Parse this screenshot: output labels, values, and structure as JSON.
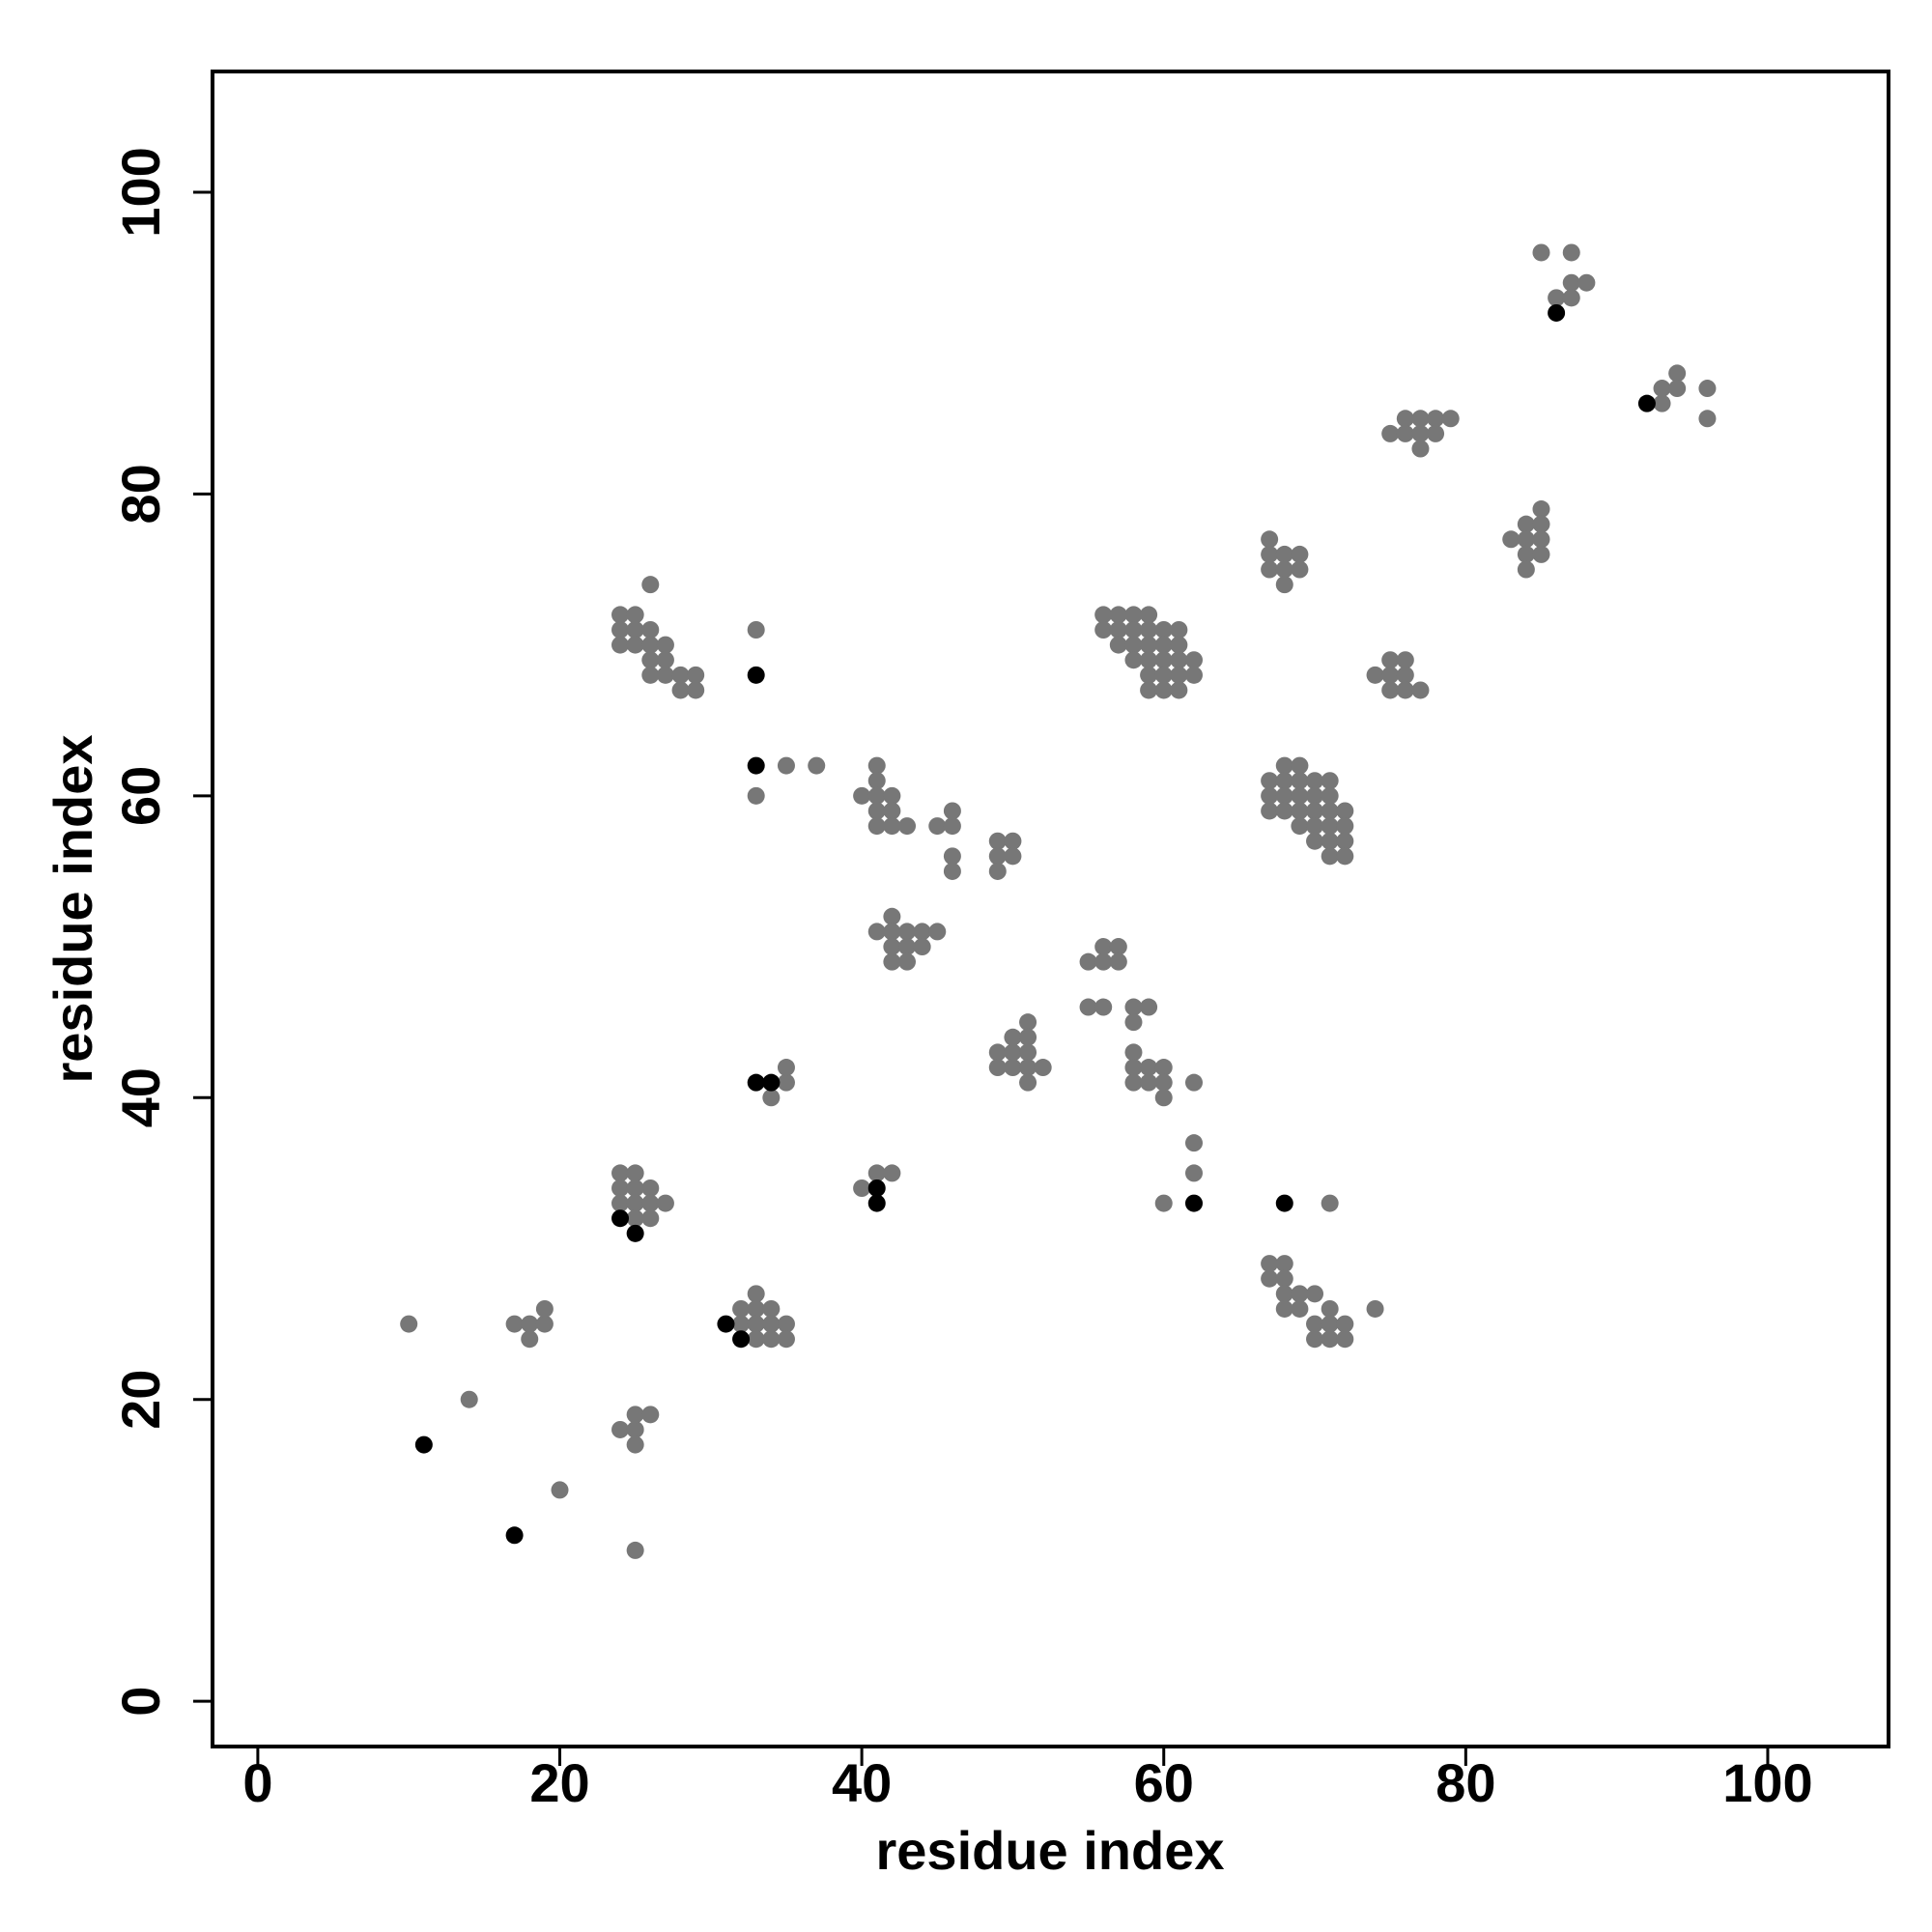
{
  "chart_data": {
    "type": "scatter",
    "xlabel": "residue index",
    "ylabel": "residue index",
    "xlim": [
      -3,
      108
    ],
    "ylim": [
      -3,
      108
    ],
    "xticks": [
      0,
      20,
      40,
      60,
      80,
      100
    ],
    "yticks": [
      0,
      20,
      40,
      60,
      80,
      100
    ],
    "series": [
      {
        "color": "#777777",
        "x": [
          10,
          14,
          20,
          25,
          17,
          18,
          19,
          18,
          19,
          24,
          25,
          25,
          26,
          25,
          24,
          25,
          24,
          26,
          24,
          25,
          26,
          27,
          25,
          26,
          25,
          33,
          32,
          33,
          34,
          32,
          33,
          34,
          35,
          33,
          34,
          35,
          34,
          35,
          35,
          40,
          41,
          42,
          26,
          24,
          25,
          24,
          25,
          26,
          24,
          25,
          26,
          27,
          26,
          27,
          26,
          27,
          28,
          29,
          28,
          29,
          33,
          33,
          35,
          37,
          41,
          41,
          40,
          41,
          42,
          41,
          42,
          41,
          42,
          43,
          45,
          46,
          46,
          46,
          46,
          49,
          50,
          49,
          50,
          49,
          42,
          41,
          42,
          43,
          44,
          45,
          42,
          43,
          44,
          42,
          43,
          51,
          50,
          51,
          49,
          50,
          51,
          49,
          50,
          51,
          52,
          51,
          56,
          57,
          55,
          56,
          57,
          55,
          56,
          58,
          59,
          58,
          58,
          58,
          59,
          60,
          58,
          59,
          60,
          62,
          60,
          62,
          62,
          60,
          71,
          56,
          57,
          58,
          59,
          56,
          57,
          58,
          59,
          60,
          61,
          57,
          58,
          59,
          60,
          61,
          58,
          59,
          60,
          61,
          62,
          59,
          60,
          61,
          62,
          59,
          60,
          61,
          68,
          69,
          67,
          68,
          69,
          70,
          71,
          67,
          68,
          69,
          70,
          71,
          67,
          68,
          69,
          70,
          71,
          72,
          69,
          70,
          71,
          72,
          70,
          71,
          72,
          71,
          72,
          67,
          67,
          68,
          69,
          67,
          68,
          69,
          68,
          74,
          75,
          76,
          75,
          76,
          75,
          76,
          77,
          67,
          68,
          67,
          68,
          68,
          69,
          70,
          68,
          69,
          71,
          74,
          70,
          71,
          72,
          70,
          71,
          72,
          76,
          77,
          78,
          79,
          75,
          76,
          77,
          78,
          77,
          85,
          84,
          85,
          83,
          84,
          85,
          84,
          85,
          84,
          85,
          87,
          87,
          88,
          86,
          87,
          94,
          93,
          94,
          96,
          93,
          96
        ],
        "values": [
          25,
          20,
          14,
          10,
          25,
          25,
          25,
          24,
          26,
          18,
          18,
          19,
          19,
          17,
          35,
          35,
          34,
          34,
          33,
          33,
          33,
          33,
          32,
          32,
          34,
          27,
          26,
          26,
          26,
          25,
          25,
          25,
          25,
          24,
          24,
          24,
          40,
          41,
          42,
          34,
          35,
          35,
          74,
          72,
          72,
          71,
          71,
          71,
          70,
          70,
          70,
          70,
          69,
          69,
          68,
          68,
          68,
          68,
          67,
          67,
          71,
          60,
          62,
          62,
          62,
          61,
          60,
          60,
          60,
          59,
          59,
          58,
          58,
          58,
          58,
          58,
          59,
          56,
          55,
          57,
          57,
          56,
          56,
          55,
          52,
          51,
          51,
          51,
          51,
          51,
          50,
          50,
          50,
          49,
          49,
          45,
          44,
          44,
          43,
          43,
          43,
          42,
          42,
          42,
          42,
          41,
          50,
          50,
          49,
          49,
          49,
          46,
          46,
          46,
          46,
          45,
          43,
          42,
          42,
          42,
          41,
          41,
          41,
          41,
          40,
          37,
          35,
          33,
          33,
          72,
          72,
          72,
          72,
          71,
          71,
          71,
          71,
          71,
          71,
          70,
          70,
          70,
          70,
          70,
          69,
          69,
          69,
          69,
          69,
          68,
          68,
          68,
          68,
          67,
          67,
          67,
          62,
          62,
          61,
          61,
          61,
          61,
          61,
          60,
          60,
          60,
          60,
          60,
          59,
          59,
          59,
          59,
          59,
          59,
          58,
          58,
          58,
          58,
          57,
          57,
          57,
          56,
          56,
          77,
          76,
          76,
          76,
          75,
          75,
          75,
          74,
          68,
          69,
          69,
          68,
          68,
          67,
          67,
          67,
          29,
          29,
          28,
          28,
          27,
          27,
          27,
          26,
          26,
          26,
          26,
          25,
          25,
          25,
          24,
          24,
          24,
          85,
          85,
          85,
          85,
          84,
          84,
          84,
          84,
          83,
          79,
          78,
          78,
          77,
          77,
          77,
          76,
          76,
          75,
          96,
          96,
          94,
          94,
          93,
          93,
          88,
          87,
          87,
          87,
          86,
          85
        ]
      },
      {
        "color": "#000000",
        "x": [
          11,
          17,
          33,
          33,
          33,
          34,
          24,
          25,
          31,
          32,
          41,
          41,
          62,
          68,
          86,
          92
        ],
        "values": [
          17,
          11,
          68,
          62,
          41,
          41,
          32,
          31,
          25,
          24,
          34,
          33,
          33,
          33,
          92,
          86
        ]
      }
    ]
  }
}
